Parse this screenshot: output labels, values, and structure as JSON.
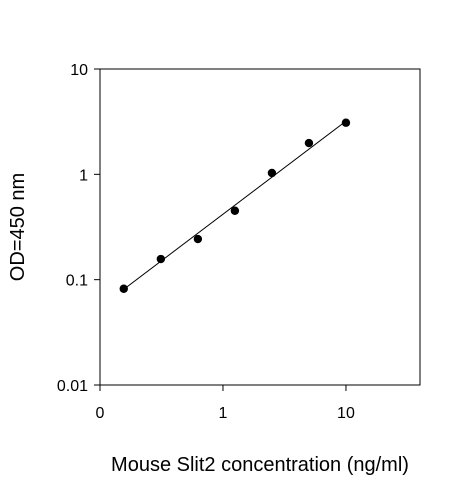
{
  "chart_data": {
    "type": "scatter",
    "title": "",
    "xlabel": "Mouse Slit2 concentration (ng/ml)",
    "ylabel": "OD=450 nm",
    "x_scale": "log",
    "y_scale": "log",
    "xlim": [
      0.1,
      40
    ],
    "ylim": [
      0.01,
      10
    ],
    "x_ticks": [
      {
        "value": 0.1,
        "label": "0"
      },
      {
        "value": 1,
        "label": "1"
      },
      {
        "value": 10,
        "label": "10"
      }
    ],
    "y_ticks": [
      {
        "value": 0.01,
        "label": "0.01"
      },
      {
        "value": 0.1,
        "label": "0.1"
      },
      {
        "value": 1,
        "label": "1"
      },
      {
        "value": 10,
        "label": "10"
      }
    ],
    "grid": false,
    "legend": "none",
    "series": [
      {
        "x": [
          0.156,
          0.3125,
          0.625,
          1.25,
          2.5,
          5,
          10
        ],
        "y": [
          0.082,
          0.157,
          0.243,
          0.451,
          1.03,
          1.98,
          3.09
        ]
      }
    ],
    "fit_line": {
      "x": [
        0.156,
        10
      ],
      "y": [
        0.081,
        3.2
      ]
    },
    "colors": {
      "marker": "#000000",
      "line": "#000000",
      "axis": "#000000"
    }
  }
}
